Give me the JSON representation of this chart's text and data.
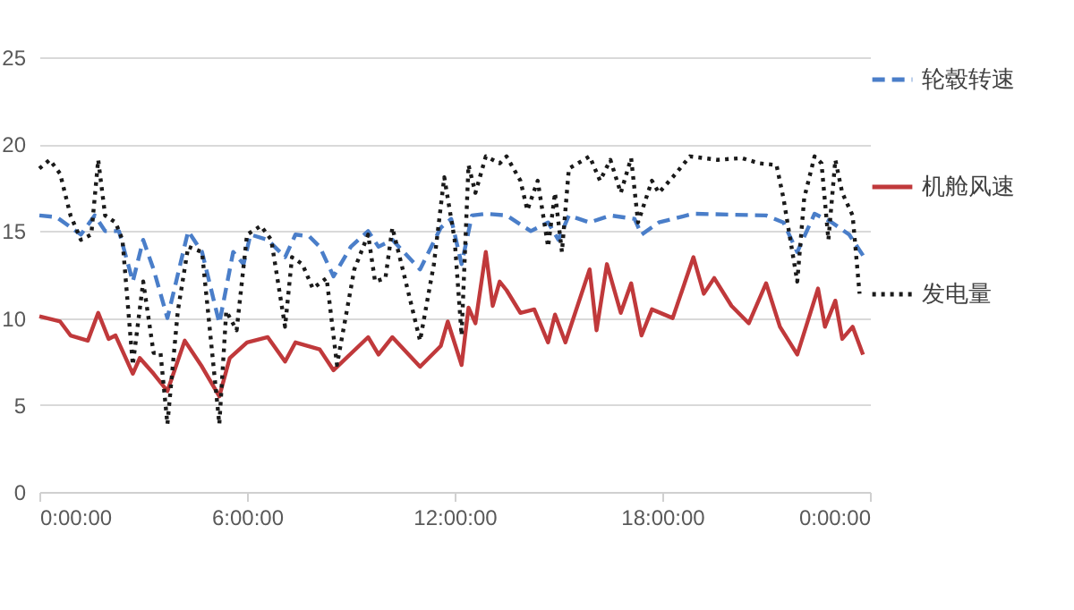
{
  "chart_data": {
    "type": "line",
    "xlim": [
      "2000-01-01T00:00",
      "2000-01-02T00:00"
    ],
    "xticks": [
      {
        "value": "2000-01-01T00:00",
        "label": "0:00:00"
      },
      {
        "value": "2000-01-01T06:00",
        "label": "6:00:00"
      },
      {
        "value": "2000-01-01T12:00",
        "label": "12:00:00"
      },
      {
        "value": "2000-01-01T18:00",
        "label": "18:00:00"
      },
      {
        "value": "2000-01-02T00:00",
        "label": "0:00:00"
      }
    ],
    "ylim": [
      0,
      25
    ],
    "yticks": [
      0,
      5,
      10,
      15,
      20,
      25
    ],
    "grid": "y",
    "legend": "right",
    "marker": "none",
    "series": [
      {
        "name": "轮毂转速",
        "color": "#4a7ec9",
        "line_style": "dashed",
        "x": [
          "2000-01-01T00:00",
          "2000-01-01T00:30",
          "2000-01-01T01:12",
          "2000-01-01T01:36",
          "2000-01-01T01:54",
          "2000-01-01T02:18",
          "2000-01-01T02:42",
          "2000-01-01T03:00",
          "2000-01-01T03:18",
          "2000-01-01T03:42",
          "2000-01-01T04:18",
          "2000-01-01T04:42",
          "2000-01-01T05:12",
          "2000-01-01T05:36",
          "2000-01-01T05:54",
          "2000-01-01T06:06",
          "2000-01-01T06:36",
          "2000-01-01T07:06",
          "2000-01-01T07:24",
          "2000-01-01T07:48",
          "2000-01-01T08:06",
          "2000-01-01T08:30",
          "2000-01-01T09:00",
          "2000-01-01T09:30",
          "2000-01-01T09:48",
          "2000-01-01T10:12",
          "2000-01-01T11:00",
          "2000-01-01T11:36",
          "2000-01-01T11:54",
          "2000-01-01T12:12",
          "2000-01-01T12:30",
          "2000-01-01T12:54",
          "2000-01-01T13:30",
          "2000-01-01T14:12",
          "2000-01-01T14:42",
          "2000-01-01T15:00",
          "2000-01-01T15:18",
          "2000-01-01T15:54",
          "2000-01-01T16:30",
          "2000-01-01T17:12",
          "2000-01-01T17:24",
          "2000-01-01T17:54",
          "2000-01-01T18:54",
          "2000-01-01T21:00",
          "2000-01-01T21:30",
          "2000-01-01T21:54",
          "2000-01-01T22:24",
          "2000-01-01T22:54",
          "2000-01-01T23:24",
          "2000-01-01T23:48"
        ],
        "values": [
          15.9,
          15.8,
          14.8,
          15.9,
          15.0,
          15.0,
          12.1,
          14.5,
          12.8,
          10.0,
          15.0,
          13.8,
          9.7,
          13.8,
          13.1,
          14.8,
          14.5,
          13.5,
          14.8,
          14.7,
          14.1,
          12.4,
          14.1,
          15.0,
          14.1,
          14.5,
          12.8,
          15.2,
          15.7,
          13.1,
          15.9,
          16.0,
          15.9,
          15.0,
          15.5,
          14.5,
          15.9,
          15.5,
          15.9,
          15.7,
          14.8,
          15.5,
          16.0,
          15.9,
          15.5,
          13.8,
          16.0,
          15.5,
          14.8,
          13.6
        ]
      },
      {
        "name": "机舱风速",
        "color": "#c0393b",
        "line_style": "solid",
        "x": [
          "2000-01-01T00:00",
          "2000-01-01T00:36",
          "2000-01-01T00:54",
          "2000-01-01T01:24",
          "2000-01-01T01:42",
          "2000-01-01T02:00",
          "2000-01-01T02:12",
          "2000-01-01T02:42",
          "2000-01-01T02:54",
          "2000-01-01T03:18",
          "2000-01-01T03:42",
          "2000-01-01T04:12",
          "2000-01-01T04:42",
          "2000-01-01T05:12",
          "2000-01-01T05:30",
          "2000-01-01T06:00",
          "2000-01-01T06:36",
          "2000-01-01T07:06",
          "2000-01-01T07:24",
          "2000-01-01T08:06",
          "2000-01-01T08:30",
          "2000-01-01T09:30",
          "2000-01-01T09:48",
          "2000-01-01T10:12",
          "2000-01-01T11:00",
          "2000-01-01T11:36",
          "2000-01-01T11:48",
          "2000-01-01T12:12",
          "2000-01-01T12:24",
          "2000-01-01T12:36",
          "2000-01-01T12:54",
          "2000-01-01T13:06",
          "2000-01-01T13:18",
          "2000-01-01T13:30",
          "2000-01-01T13:54",
          "2000-01-01T14:18",
          "2000-01-01T14:42",
          "2000-01-01T14:54",
          "2000-01-01T15:12",
          "2000-01-01T15:54",
          "2000-01-01T16:06",
          "2000-01-01T16:24",
          "2000-01-01T16:48",
          "2000-01-01T17:06",
          "2000-01-01T17:24",
          "2000-01-01T17:42",
          "2000-01-01T18:18",
          "2000-01-01T18:54",
          "2000-01-01T19:12",
          "2000-01-01T19:30",
          "2000-01-01T20:00",
          "2000-01-01T20:30",
          "2000-01-01T21:00",
          "2000-01-01T21:24",
          "2000-01-01T21:54",
          "2000-01-01T22:30",
          "2000-01-01T22:42",
          "2000-01-01T23:00",
          "2000-01-01T23:12",
          "2000-01-01T23:30",
          "2000-01-01T23:48"
        ],
        "values": [
          10.1,
          9.8,
          9.0,
          8.7,
          10.3,
          8.8,
          9.0,
          6.8,
          7.7,
          6.8,
          5.8,
          8.7,
          7.2,
          5.5,
          7.7,
          8.6,
          8.9,
          7.5,
          8.6,
          8.2,
          7.0,
          8.9,
          7.9,
          8.9,
          7.2,
          8.4,
          9.8,
          7.3,
          10.6,
          9.7,
          13.8,
          10.7,
          12.1,
          11.6,
          10.3,
          10.5,
          8.6,
          10.2,
          8.6,
          12.8,
          9.3,
          13.1,
          10.3,
          12.0,
          9.0,
          10.5,
          10.0,
          13.5,
          11.4,
          12.3,
          10.7,
          9.7,
          12.0,
          9.5,
          7.9,
          11.7,
          9.5,
          11.0,
          8.8,
          9.5,
          7.9
        ]
      },
      {
        "name": "发电量",
        "color": "#1a1a1a",
        "line_style": "dotted",
        "x": [
          "2000-01-01T00:00",
          "2000-01-01T00:18",
          "2000-01-01T00:36",
          "2000-01-01T00:54",
          "2000-01-01T01:12",
          "2000-01-01T01:30",
          "2000-01-01T01:42",
          "2000-01-01T01:54",
          "2000-01-01T02:12",
          "2000-01-01T02:24",
          "2000-01-01T02:42",
          "2000-01-01T03:00",
          "2000-01-01T03:18",
          "2000-01-01T03:30",
          "2000-01-01T03:42",
          "2000-01-01T04:00",
          "2000-01-01T04:18",
          "2000-01-01T04:42",
          "2000-01-01T05:12",
          "2000-01-01T05:24",
          "2000-01-01T05:42",
          "2000-01-01T06:00",
          "2000-01-01T06:24",
          "2000-01-01T06:42",
          "2000-01-01T07:06",
          "2000-01-01T07:18",
          "2000-01-01T07:36",
          "2000-01-01T07:54",
          "2000-01-01T08:18",
          "2000-01-01T08:36",
          "2000-01-01T09:06",
          "2000-01-01T09:30",
          "2000-01-01T09:42",
          "2000-01-01T10:00",
          "2000-01-01T10:12",
          "2000-01-01T10:30",
          "2000-01-01T11:00",
          "2000-01-01T11:24",
          "2000-01-01T11:42",
          "2000-01-01T12:00",
          "2000-01-01T12:12",
          "2000-01-01T12:24",
          "2000-01-01T12:36",
          "2000-01-01T12:54",
          "2000-01-01T13:18",
          "2000-01-01T13:30",
          "2000-01-01T13:54",
          "2000-01-01T14:06",
          "2000-01-01T14:24",
          "2000-01-01T14:42",
          "2000-01-01T14:54",
          "2000-01-01T15:06",
          "2000-01-01T15:18",
          "2000-01-01T15:54",
          "2000-01-01T16:12",
          "2000-01-01T16:30",
          "2000-01-01T16:48",
          "2000-01-01T17:06",
          "2000-01-01T17:18",
          "2000-01-01T17:42",
          "2000-01-01T17:54",
          "2000-01-01T18:18",
          "2000-01-01T18:48",
          "2000-01-01T19:36",
          "2000-01-01T20:18",
          "2000-01-01T20:48",
          "2000-01-01T21:18",
          "2000-01-01T21:30",
          "2000-01-01T21:54",
          "2000-01-01T22:06",
          "2000-01-01T22:24",
          "2000-01-01T22:36",
          "2000-01-01T22:48",
          "2000-01-01T23:00",
          "2000-01-01T23:12",
          "2000-01-01T23:30",
          "2000-01-01T23:42"
        ],
        "values": [
          18.6,
          19.1,
          18.3,
          15.9,
          14.5,
          14.8,
          19.1,
          15.9,
          15.5,
          14.5,
          7.3,
          12.1,
          8.0,
          8.0,
          3.9,
          10.4,
          14.1,
          13.8,
          3.9,
          10.4,
          9.3,
          14.8,
          15.3,
          14.5,
          9.5,
          13.5,
          13.1,
          11.7,
          12.3,
          7.3,
          12.8,
          14.8,
          12.1,
          12.3,
          15.2,
          12.8,
          8.7,
          13.1,
          18.1,
          14.5,
          9.0,
          18.8,
          17.2,
          19.3,
          18.9,
          19.3,
          17.9,
          16.2,
          17.9,
          14.1,
          17.2,
          13.8,
          18.6,
          19.3,
          17.9,
          19.1,
          17.2,
          19.2,
          15.5,
          17.9,
          17.2,
          18.1,
          19.3,
          19.1,
          19.2,
          18.9,
          18.8,
          16.9,
          12.1,
          16.9,
          19.3,
          18.9,
          14.5,
          19.1,
          17.2,
          15.9,
          11.4
        ]
      }
    ]
  }
}
